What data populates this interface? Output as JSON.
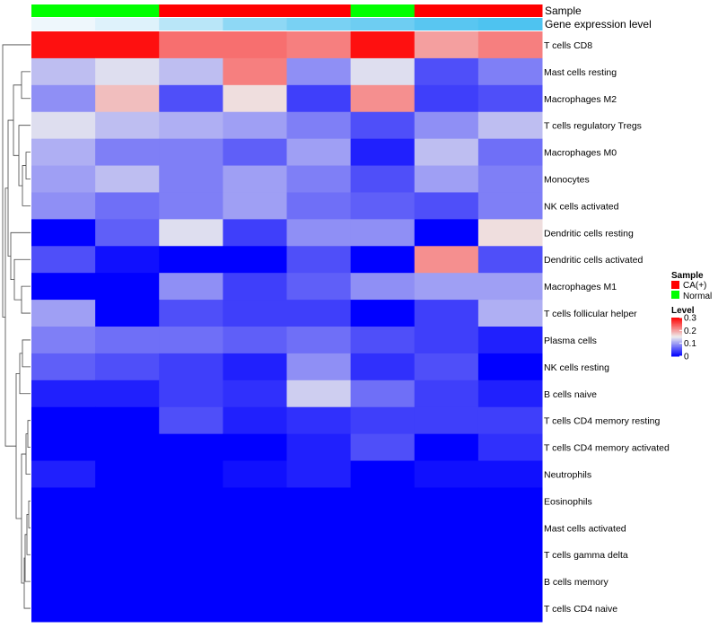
{
  "chart_data": {
    "type": "heatmap",
    "title": "",
    "annotation_rows": [
      {
        "name": "Sample",
        "values": [
          "Normal",
          "Normal",
          "CA(+)",
          "CA(+)",
          "CA(+)",
          "Normal",
          "CA(+)",
          "CA(+)"
        ]
      },
      {
        "name": "Gene expression level",
        "values": [
          0.0,
          0.03,
          0.1,
          0.18,
          0.22,
          0.24,
          0.28,
          0.3
        ]
      }
    ],
    "rows": [
      "T cells CD8",
      "Mast cells resting",
      "Macrophages M2",
      "T cells regulatory  Tregs",
      "Macrophages M0",
      "Monocytes",
      "NK cells activated",
      "Dendritic cells resting",
      "Dendritic cells activated",
      "Macrophages M1",
      "T cells follicular helper",
      "Plasma cells",
      "NK cells resting",
      "B cells naive",
      "T cells CD4 memory resting",
      "T cells CD4 memory activated",
      "Neutrophils",
      "Eosinophils",
      "Mast cells activated",
      "T cells gamma delta",
      "B cells memory",
      "T cells CD4 naive"
    ],
    "values": [
      [
        0.29,
        0.29,
        0.23,
        0.23,
        0.22,
        0.29,
        0.2,
        0.22
      ],
      [
        0.12,
        0.14,
        0.12,
        0.22,
        0.09,
        0.14,
        0.05,
        0.08
      ],
      [
        0.09,
        0.18,
        0.05,
        0.16,
        0.04,
        0.21,
        0.04,
        0.05
      ],
      [
        0.14,
        0.12,
        0.11,
        0.1,
        0.08,
        0.05,
        0.09,
        0.12
      ],
      [
        0.11,
        0.08,
        0.08,
        0.06,
        0.1,
        0.02,
        0.12,
        0.07
      ],
      [
        0.1,
        0.12,
        0.08,
        0.1,
        0.08,
        0.05,
        0.1,
        0.08
      ],
      [
        0.09,
        0.07,
        0.08,
        0.1,
        0.07,
        0.06,
        0.05,
        0.08
      ],
      [
        0.0,
        0.06,
        0.14,
        0.04,
        0.09,
        0.09,
        0.0,
        0.16
      ],
      [
        0.05,
        0.01,
        0.0,
        0.0,
        0.05,
        0.0,
        0.21,
        0.05
      ],
      [
        0.0,
        0.0,
        0.09,
        0.04,
        0.06,
        0.09,
        0.1,
        0.1
      ],
      [
        0.1,
        0.0,
        0.05,
        0.04,
        0.04,
        0.0,
        0.04,
        0.11
      ],
      [
        0.08,
        0.07,
        0.07,
        0.06,
        0.07,
        0.05,
        0.04,
        0.02
      ],
      [
        0.06,
        0.05,
        0.04,
        0.02,
        0.09,
        0.03,
        0.05,
        0.0
      ],
      [
        0.02,
        0.02,
        0.04,
        0.03,
        0.13,
        0.07,
        0.04,
        0.02
      ],
      [
        0.0,
        0.0,
        0.05,
        0.02,
        0.03,
        0.04,
        0.04,
        0.04
      ],
      [
        0.0,
        0.0,
        0.0,
        0.0,
        0.02,
        0.05,
        0.0,
        0.03
      ],
      [
        0.02,
        0.0,
        0.0,
        0.01,
        0.02,
        0.0,
        0.01,
        0.01
      ],
      [
        0.0,
        0.0,
        0.0,
        0.0,
        0.0,
        0.0,
        0.0,
        0.0
      ],
      [
        0.0,
        0.0,
        0.0,
        0.0,
        0.0,
        0.0,
        0.0,
        0.0
      ],
      [
        0.0,
        0.0,
        0.0,
        0.0,
        0.0,
        0.0,
        0.0,
        0.0
      ],
      [
        0.0,
        0.0,
        0.0,
        0.0,
        0.0,
        0.0,
        0.0,
        0.0
      ],
      [
        0.0,
        0.0,
        0.0,
        0.0,
        0.0,
        0.0,
        0.0,
        0.0
      ]
    ],
    "color_scale": {
      "min": 0,
      "mid": 0.15,
      "max": 0.3,
      "low_color": "#0000ff",
      "mid_color": "#eeeeee",
      "high_color": "#ff0000"
    },
    "sample_colors": {
      "CA(+)": "#ff0000",
      "Normal": "#00ff00"
    },
    "expression_colors": {
      "low": "#eef7fc",
      "high": "#4ec3f0"
    },
    "legend": {
      "sample_title": "Sample",
      "sample_items": [
        "CA(+)",
        "Normal"
      ],
      "level_title": "Level",
      "level_ticks": [
        "0.3",
        "0.2",
        "0.1",
        "0"
      ],
      "level_tick_values": [
        0.3,
        0.2,
        0.1,
        0
      ],
      "position": "right"
    }
  }
}
